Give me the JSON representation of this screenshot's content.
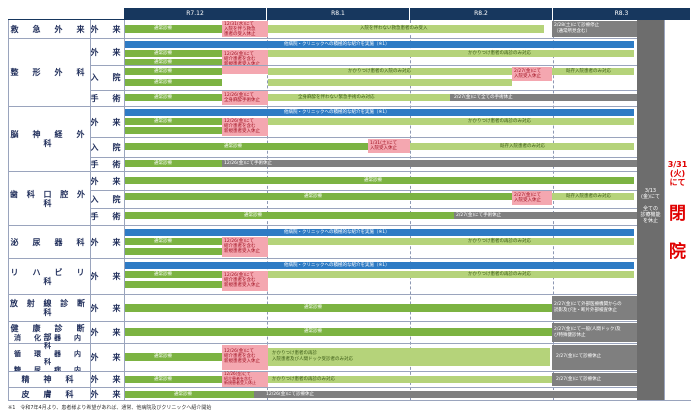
{
  "header": {
    "months": [
      "R7.12",
      "R8.1",
      "R8.2",
      "R8.3"
    ]
  },
  "departments": {
    "d1": "救　急　外　来",
    "d2": "整　形　外　科",
    "d3": "脳　神　経　外　科",
    "d4": "歯 科 口 腔 外 科",
    "d5": "泌　尿　器　科",
    "d6": "リ　ハ　ビ　リ　科",
    "d7": "放 射 線 診 断 科",
    "d8": "健　康　診　断　部",
    "d9a": "消　化　器　内　科",
    "d9b": "循　環　器　内　科",
    "d9c": "糖　尿　病　内　科",
    "d10": "精　神　科",
    "d11": "皮　膚　科"
  },
  "sub": {
    "gairai": "外　来",
    "nyuin": "入　院",
    "shujutsu": "手　術"
  },
  "labels": {
    "normal": "通常診療",
    "referral": "他病院・クリニックへの積極的な紹介を実施（※1）",
    "kakaritsuke_outpatient": "かかりつけ患者の再診のみ対応",
    "kakaritsuke_inpatient": "かかりつけ患者の入院のみ対応",
    "emergency_no_adm": "入院を伴わない救急患者のみ受入",
    "emergency_no_adm2": "全身麻酔を伴わない緊急手術のみ対応",
    "existing_only": "既存入院患者のみ対応",
    "ent_stop_12_26": "12/26(金)にて手術休止",
    "ent_stop_12_26b": "12/26(金)にて診療休止",
    "pink_er": "12/31(水)にて\n入院を伴う救急\n患者の受入休止",
    "pink_new": "12/26(金)にて\n紹介患者を含む\n新規患者受入休止",
    "pink_surgery": "12/26(金)にて\n全身麻酔手術休止",
    "pink_adm_stop": "2/27(金)にて\n入院受入休止",
    "pink_adm_stop2": "1/31(土)にて\n入院受入休止",
    "stop_2_28": "2/28(土)にて診療停止\n（通常所見含む）",
    "stop_2_27_surg": "2/27(金)にて全ての手術休止",
    "stop_2_27_surg2": "2/27(金)にて手術休止",
    "stop_2_27_ext": "2/27(金)にて外部医療機関からの\n読影及び注・断片外部検査休止",
    "stop_2_27_hc": "2/27(金)にて一般(人間ドック)及\nび特殊健診休止",
    "stop_2_27_med": "2/27(金)にて診療休止",
    "kakaritsuke_gi": "かかりつけ患者の再診\n入院患者及び人間ドック受診者のみ対応"
  },
  "closing": {
    "col_text": "3/13\n(金)にて\n\n全ての\n診療機能\nを休止",
    "date": "3/31\n(火)\nにて",
    "big1": "閉",
    "big2": "院"
  },
  "footnote": "※1　令和7年4月より、患者様より希望があれば、通常、他病院及びクリニックへ紹介開始",
  "colors": {
    "header": "#17375e",
    "green": "#7cb342",
    "light_green": "#b5d37a",
    "blue": "#2e7bc4",
    "gray": "#7f7f7f",
    "pink": "#f4a7b0",
    "closing_red": "#e00000"
  }
}
